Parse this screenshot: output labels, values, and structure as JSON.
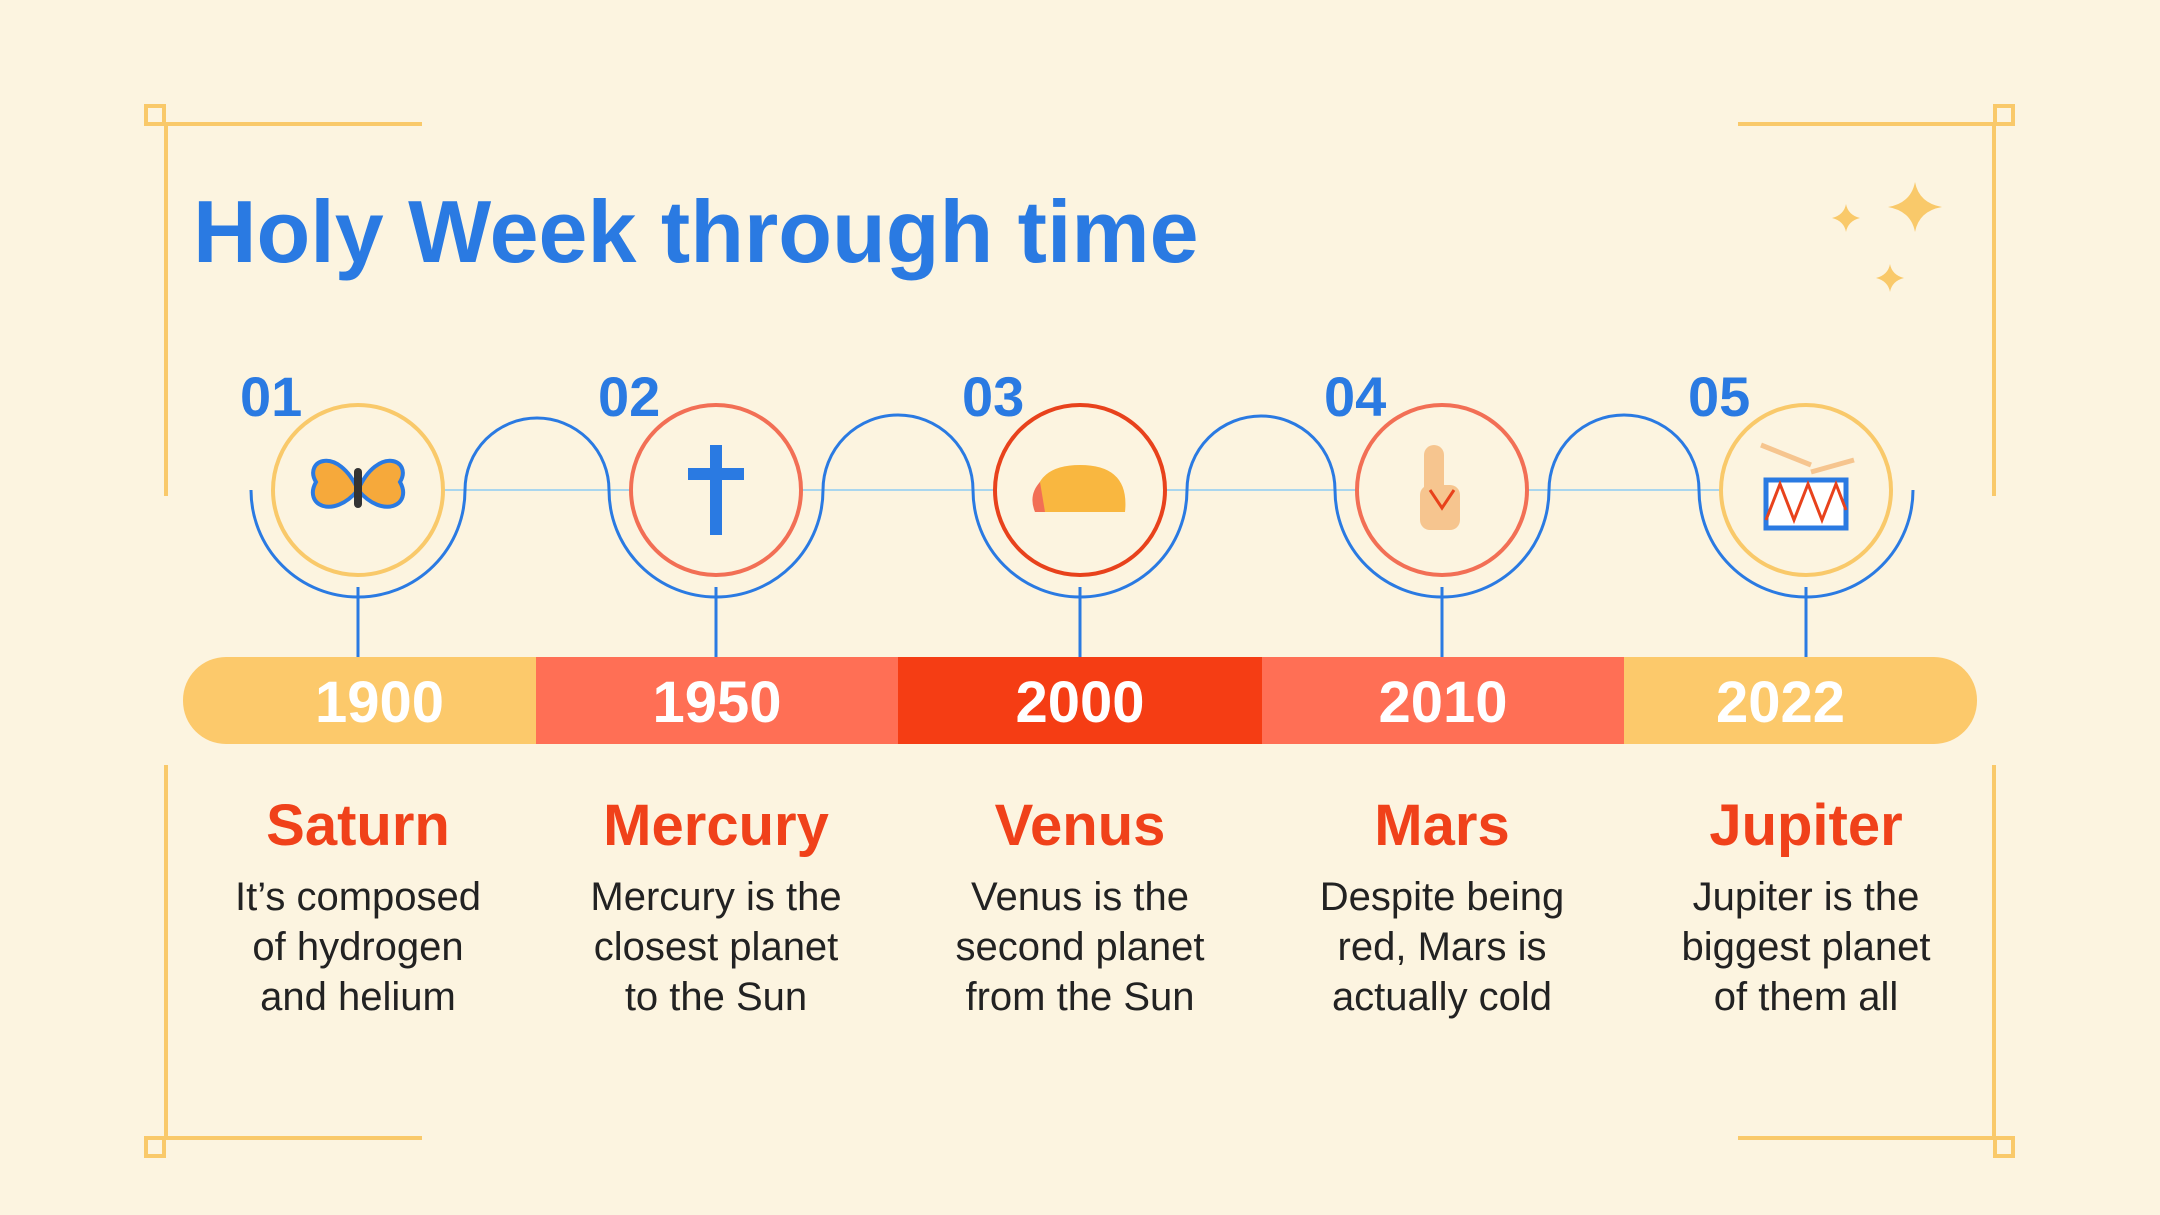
{
  "title": "Holy Week through time",
  "items": [
    {
      "number": "01",
      "year": "1900",
      "name": "Saturn",
      "description": [
        "It’s composed",
        "of hydrogen",
        "and helium"
      ]
    },
    {
      "number": "02",
      "year": "1950",
      "name": "Mercury",
      "description": [
        "Mercury is the",
        "closest planet",
        "to the Sun"
      ]
    },
    {
      "number": "03",
      "year": "2000",
      "name": "Venus",
      "description": [
        "Venus is the",
        "second planet",
        "from the Sun"
      ]
    },
    {
      "number": "04",
      "year": "2010",
      "name": "Mars",
      "description": [
        "Despite being",
        "red, Mars is",
        "actually cold"
      ]
    },
    {
      "number": "05",
      "year": "2022",
      "name": "Jupiter",
      "description": [
        "Jupiter is the",
        "biggest planet",
        "of them all"
      ]
    }
  ]
}
